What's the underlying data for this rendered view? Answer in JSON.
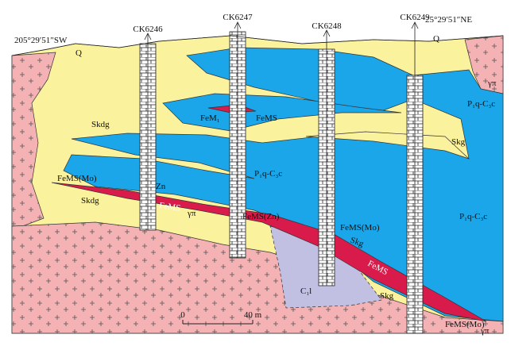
{
  "header": {
    "left_coord": "205°29′51″SW",
    "right_coord": "25°29′51″NE"
  },
  "boreholes": [
    "CK6246",
    "CK6247",
    "CK6248",
    "CK6249"
  ],
  "labels": [
    "Q",
    "Q",
    "Skdg",
    "Skdg",
    "γπ",
    "γπ",
    "γπ",
    "FeM₁",
    "FeMS",
    "P₁q-C₃c",
    "P₁q-C₃c",
    "P₁q-C₃c",
    "Skg",
    "FeMS(Mo)",
    "Zn",
    "FeMS",
    "FeMS(Zn)",
    "FeMS(Mo)",
    "Skg",
    "FeMS",
    "Skg",
    "C₁l",
    "FeMS(Mo)"
  ],
  "scale": {
    "start": "0",
    "end": "40 m"
  }
}
